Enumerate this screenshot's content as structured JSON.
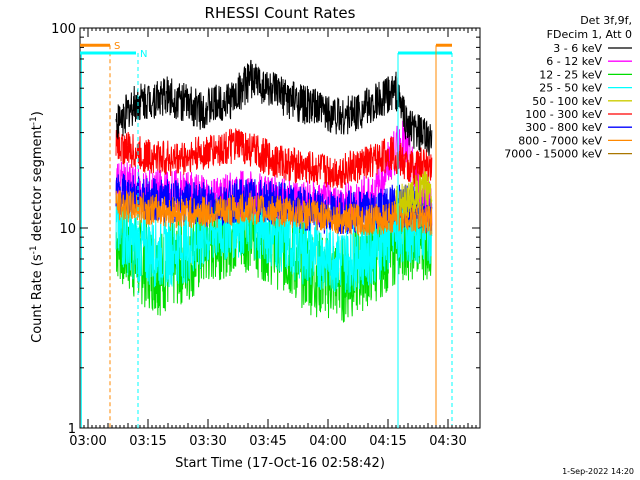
{
  "chart_data": {
    "type": "line",
    "title": "RHESSI Count Rates",
    "xlabel": "Start Time (17-Oct-16 02:58:42)",
    "ylabel": "Count Rate (s⁻¹ detector segment⁻¹)",
    "ylabel_main": "Count Rate (s",
    "ylabel_mid": " detector segment",
    "ylabel_close": ")",
    "ylabel_sup": "-1",
    "y_scale": "log",
    "ylim": [
      1,
      100
    ],
    "xlim": [
      "02:58:00",
      "04:38:00"
    ],
    "x_ticks": [
      "03:00",
      "03:15",
      "03:30",
      "03:45",
      "04:00",
      "04:15",
      "04:30"
    ],
    "y_ticks": [
      "1",
      "10",
      "100"
    ],
    "legend_header": [
      "Det 3f,9f,",
      "FDecim 1, Att 0"
    ],
    "legend_position": "right",
    "date_stamp": "1-Sep-2022 14:20",
    "series": [
      {
        "name": "3 - 6 keV",
        "color": "#000000",
        "x": [
          "03:07",
          "03:12",
          "03:20",
          "03:28",
          "03:36",
          "03:41",
          "03:48",
          "03:56",
          "04:04",
          "04:12",
          "04:17",
          "04:20",
          "04:26"
        ],
        "values": [
          33,
          42,
          46,
          39,
          44,
          56,
          46,
          40,
          36,
          42,
          49,
          32,
          27
        ]
      },
      {
        "name": "6 - 12 keV",
        "color": "#ff00ff",
        "x": [
          "03:07",
          "03:14",
          "03:22",
          "03:32",
          "03:40",
          "03:50",
          "03:58",
          "04:06",
          "04:12",
          "04:16",
          "04:19",
          "04:23",
          "04:26"
        ],
        "values": [
          17,
          15,
          15,
          14,
          15,
          14,
          13,
          13,
          15,
          23,
          27,
          15,
          13
        ]
      },
      {
        "name": "12 - 25 keV",
        "color": "#00dd00",
        "x": [
          "03:07",
          "03:12",
          "03:18",
          "03:25",
          "03:32",
          "03:40",
          "03:48",
          "03:56",
          "04:04",
          "04:12",
          "04:18",
          "04:26"
        ],
        "values": [
          9,
          7,
          6,
          7,
          9,
          10,
          8,
          6,
          5.5,
          7,
          9,
          9
        ]
      },
      {
        "name": "25 - 50 keV",
        "color": "#00ffff",
        "x": [
          "03:07",
          "03:12",
          "03:18",
          "03:25",
          "03:32",
          "03:40",
          "03:48",
          "03:56",
          "04:04",
          "04:12",
          "04:18",
          "04:26"
        ],
        "values": [
          10,
          8,
          7.5,
          8,
          10,
          11,
          9,
          7.5,
          7,
          8,
          10,
          10
        ]
      },
      {
        "name": "50 - 100 keV",
        "color": "#cccc00",
        "x": [
          "04:17",
          "04:20",
          "04:23",
          "04:26"
        ],
        "values": [
          13,
          14,
          15,
          16
        ]
      },
      {
        "name": "100 - 300 keV",
        "color": "#ff0000",
        "x": [
          "03:07",
          "03:14",
          "03:22",
          "03:30",
          "03:38",
          "03:46",
          "03:54",
          "04:02",
          "04:10",
          "04:16",
          "04:20",
          "04:26"
        ],
        "values": [
          26,
          23,
          22,
          24,
          26,
          22,
          20,
          19,
          21,
          24,
          20,
          21
        ]
      },
      {
        "name": "300 - 800 keV",
        "color": "#0000ff",
        "x": [
          "03:07",
          "03:14",
          "03:22",
          "03:32",
          "03:40",
          "03:50",
          "03:58",
          "04:06",
          "04:12",
          "04:18",
          "04:26"
        ],
        "values": [
          15,
          14,
          13.5,
          13,
          14,
          13,
          12,
          12,
          12.5,
          13,
          12
        ]
      },
      {
        "name": "800 - 7000 keV",
        "color": "#ff8800",
        "x": [
          "03:07",
          "03:14",
          "03:22",
          "03:32",
          "03:40",
          "03:50",
          "03:58",
          "04:06",
          "04:12",
          "04:18",
          "04:26"
        ],
        "values": [
          13,
          12.5,
          12,
          12,
          12.5,
          12,
          11.5,
          11,
          11,
          11.5,
          11
        ]
      },
      {
        "name": "7000 - 15000 keV",
        "color": "#aa7700",
        "x": [],
        "values": []
      }
    ],
    "attenuator_bars": [
      {
        "label": "S",
        "color": "#ff8800",
        "start": "02:58:00",
        "end": "03:05:30",
        "level": 82,
        "end_marker": "03:05:30"
      },
      {
        "label": "N",
        "color": "#00ffff",
        "start": "02:58:00",
        "end": "03:12:00",
        "level": 75,
        "end_marker": "03:12:30"
      },
      {
        "label": "",
        "color": "#00ffff",
        "start": "04:17:30",
        "end": "04:31:00",
        "level": 75,
        "start_marker": "04:17:30"
      },
      {
        "label": "",
        "color": "#ff8800",
        "start": "04:27:00",
        "end": "04:31:00",
        "level": 82,
        "start_marker": "04:27:00"
      }
    ],
    "grid": false
  }
}
